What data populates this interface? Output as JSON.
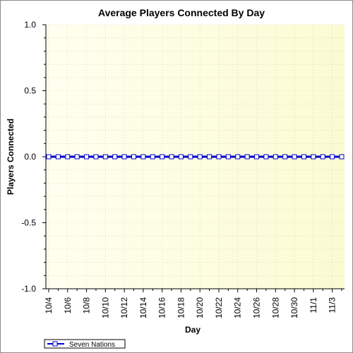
{
  "chart_data": {
    "type": "line",
    "title": "Average Players Connected By Day",
    "xlabel": "Day",
    "ylabel": "Players Connected",
    "ylim": [
      -1.0,
      1.0
    ],
    "yticks": [
      "1.0",
      "0.5",
      "0.0",
      "-0.5",
      "-1.0"
    ],
    "x_tick_labels": [
      "10/4",
      "10/6",
      "10/8",
      "10/10",
      "10/12",
      "10/14",
      "10/16",
      "10/18",
      "10/20",
      "10/22",
      "10/24",
      "10/26",
      "10/28",
      "10/30",
      "11/1",
      "11/3"
    ],
    "x": [
      "10/4",
      "10/5",
      "10/6",
      "10/7",
      "10/8",
      "10/9",
      "10/10",
      "10/11",
      "10/12",
      "10/13",
      "10/14",
      "10/15",
      "10/16",
      "10/17",
      "10/18",
      "10/19",
      "10/20",
      "10/21",
      "10/22",
      "10/23",
      "10/24",
      "10/25",
      "10/26",
      "10/27",
      "10/28",
      "10/29",
      "10/30",
      "10/31",
      "11/1",
      "11/2",
      "11/3",
      "11/4"
    ],
    "series": [
      {
        "name": "Seven Nations",
        "color": "#0000cc",
        "values": [
          0,
          0,
          0,
          0,
          0,
          0,
          0,
          0,
          0,
          0,
          0,
          0,
          0,
          0,
          0,
          0,
          0,
          0,
          0,
          0,
          0,
          0,
          0,
          0,
          0,
          0,
          0,
          0,
          0,
          0,
          0,
          0
        ]
      }
    ],
    "grid": true,
    "legend_position": "bottom-left",
    "colors": {
      "plot_bg_left": "#fffff0",
      "plot_bg_right": "#fbfbd2",
      "grid": "#c8c8a0"
    }
  }
}
